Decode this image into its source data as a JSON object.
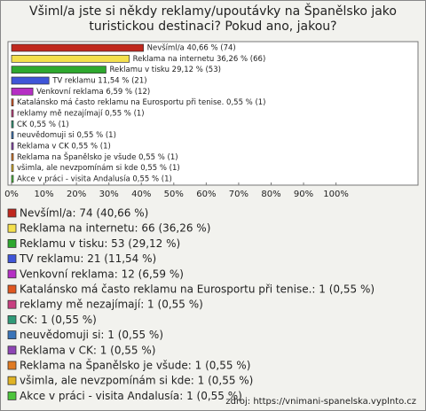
{
  "chart_data": {
    "type": "bar",
    "orientation": "horizontal",
    "title": "Všiml/a jste si někdy reklamy/upoutávky na Španělsko jako turistickou destinaci? Pokud ano, jakou?",
    "values": [
      40.66,
      36.26,
      29.12,
      11.54,
      6.59,
      0.55,
      0.55,
      0.55,
      0.55,
      0.55,
      0.55,
      0.55,
      0.55
    ],
    "value_labels": [
      "Nevšíml/a 40,66 % (74)",
      "Reklama na internetu 36,26 % (66)",
      "Reklamu v tisku 29,12 % (53)",
      "TV reklamu 11,54 % (21)",
      "Venkovní reklama 6,59 % (12)",
      "Katalánsko má často reklamu na Eurosportu při tenise. 0,55 % (1)",
      "reklamy mě nezajímají 0,55 % (1)",
      "CK 0,55 % (1)",
      "neuvědomuji si 0,55 % (1)",
      "Reklama v CK 0,55 % (1)",
      "Reklama na Španělsko je všude 0,55 % (1)",
      "všimla, ale nevzpomínám si kde 0,55 % (1)",
      "Akce v práci - visita Andalusía 0,55 % (1)"
    ],
    "colors": [
      "#c0271d",
      "#f4e04c",
      "#2ea82e",
      "#3f55d8",
      "#b52fc4",
      "#e0561f",
      "#c83f80",
      "#2f9a78",
      "#3a74b8",
      "#8e45b5",
      "#e07a22",
      "#e0b324",
      "#4cc43c"
    ],
    "legend": [
      "Nevšíml/a: 74 (40,66 %)",
      "Reklama na internetu: 66 (36,26 %)",
      "Reklamu v tisku: 53 (29,12 %)",
      "TV reklamu: 21 (11,54 %)",
      "Venkovní reklama: 12 (6,59 %)",
      "Katalánsko má často reklamu na Eurosportu při tenise.: 1 (0,55 %)",
      "reklamy mě nezajímají: 1 (0,55 %)",
      "CK: 1 (0,55 %)",
      "neuvědomuji si: 1 (0,55 %)",
      "Reklama v CK: 1 (0,55 %)",
      "Reklama na Španělsko je všude: 1 (0,55 %)",
      "všimla, ale nevzpomínám si kde: 1 (0,55 %)",
      "Akce v práci - visita Andalusía: 1 (0,55 %)"
    ],
    "xlim": [
      0,
      125
    ],
    "xticks": [
      {
        "value": 0,
        "label": "0%"
      },
      {
        "value": 10,
        "label": "10%"
      },
      {
        "value": 20,
        "label": "20%"
      },
      {
        "value": 30,
        "label": "30%"
      },
      {
        "value": 40,
        "label": "40%"
      },
      {
        "value": 50,
        "label": "50%"
      },
      {
        "value": 60,
        "label": "60%"
      },
      {
        "value": 70,
        "label": "70%"
      },
      {
        "value": 80,
        "label": "80%"
      },
      {
        "value": 90,
        "label": "90%"
      },
      {
        "value": 100,
        "label": "100%"
      }
    ],
    "grid": false,
    "source": "zdroj: https://vnimani-spanelska.vyplnto.cz"
  }
}
